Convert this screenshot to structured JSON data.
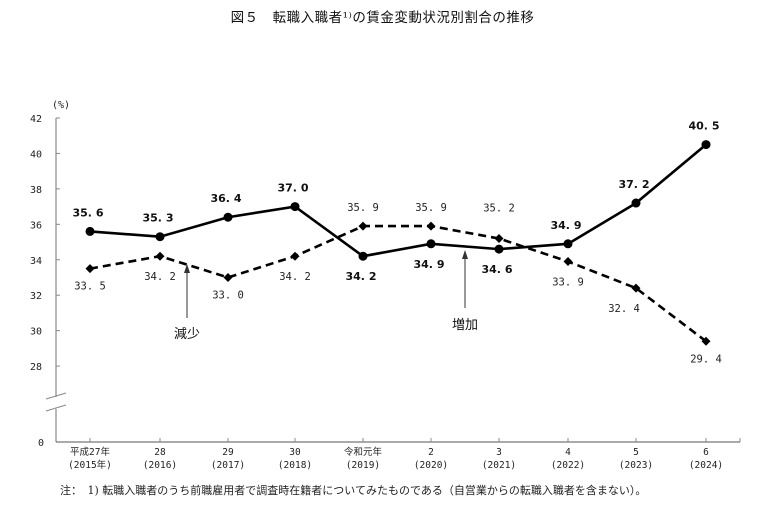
{
  "title": "図５　転職入職者¹⁾の賃金変動状況別割合の推移",
  "note": "注：　1) 転職入職者のうち前職雇用者で調査時在籍者についてみたものである（自営業からの転職入職者を含まない）。",
  "chart_data": {
    "type": "line",
    "title": "図５　転職入職者1)の賃金変動状況別割合の推移",
    "ylabel": "(%)",
    "xlabel": "",
    "ylim": [
      0,
      42
    ],
    "y_axis_break": true,
    "y_ticks": [
      0,
      28,
      30,
      32,
      34,
      36,
      38,
      40,
      42
    ],
    "categories": [
      [
        "平成27年",
        "(2015年)"
      ],
      [
        "28",
        "(2016)"
      ],
      [
        "29",
        "(2017)"
      ],
      [
        "30",
        "(2018)"
      ],
      [
        "令和元年",
        "(2019)"
      ],
      [
        "2",
        "(2020)"
      ],
      [
        "3",
        "(2021)"
      ],
      [
        "4",
        "(2022)"
      ],
      [
        "5",
        "(2023)"
      ],
      [
        "6",
        "(2024)"
      ]
    ],
    "series": [
      {
        "name": "増加",
        "style": "solid",
        "marker": "circle",
        "values": [
          35.6,
          35.3,
          36.4,
          37.0,
          34.2,
          34.9,
          34.6,
          34.9,
          37.2,
          40.5
        ]
      },
      {
        "name": "減少",
        "style": "dashed",
        "marker": "diamond",
        "values": [
          33.5,
          34.2,
          33.0,
          34.2,
          35.9,
          35.9,
          35.2,
          33.9,
          32.4,
          29.4
        ]
      }
    ],
    "annotations": [
      {
        "text": "減少",
        "series": "減少"
      },
      {
        "text": "増加",
        "series": "増加"
      }
    ],
    "grid": false,
    "legend": "none (inline annotations with arrows)"
  }
}
